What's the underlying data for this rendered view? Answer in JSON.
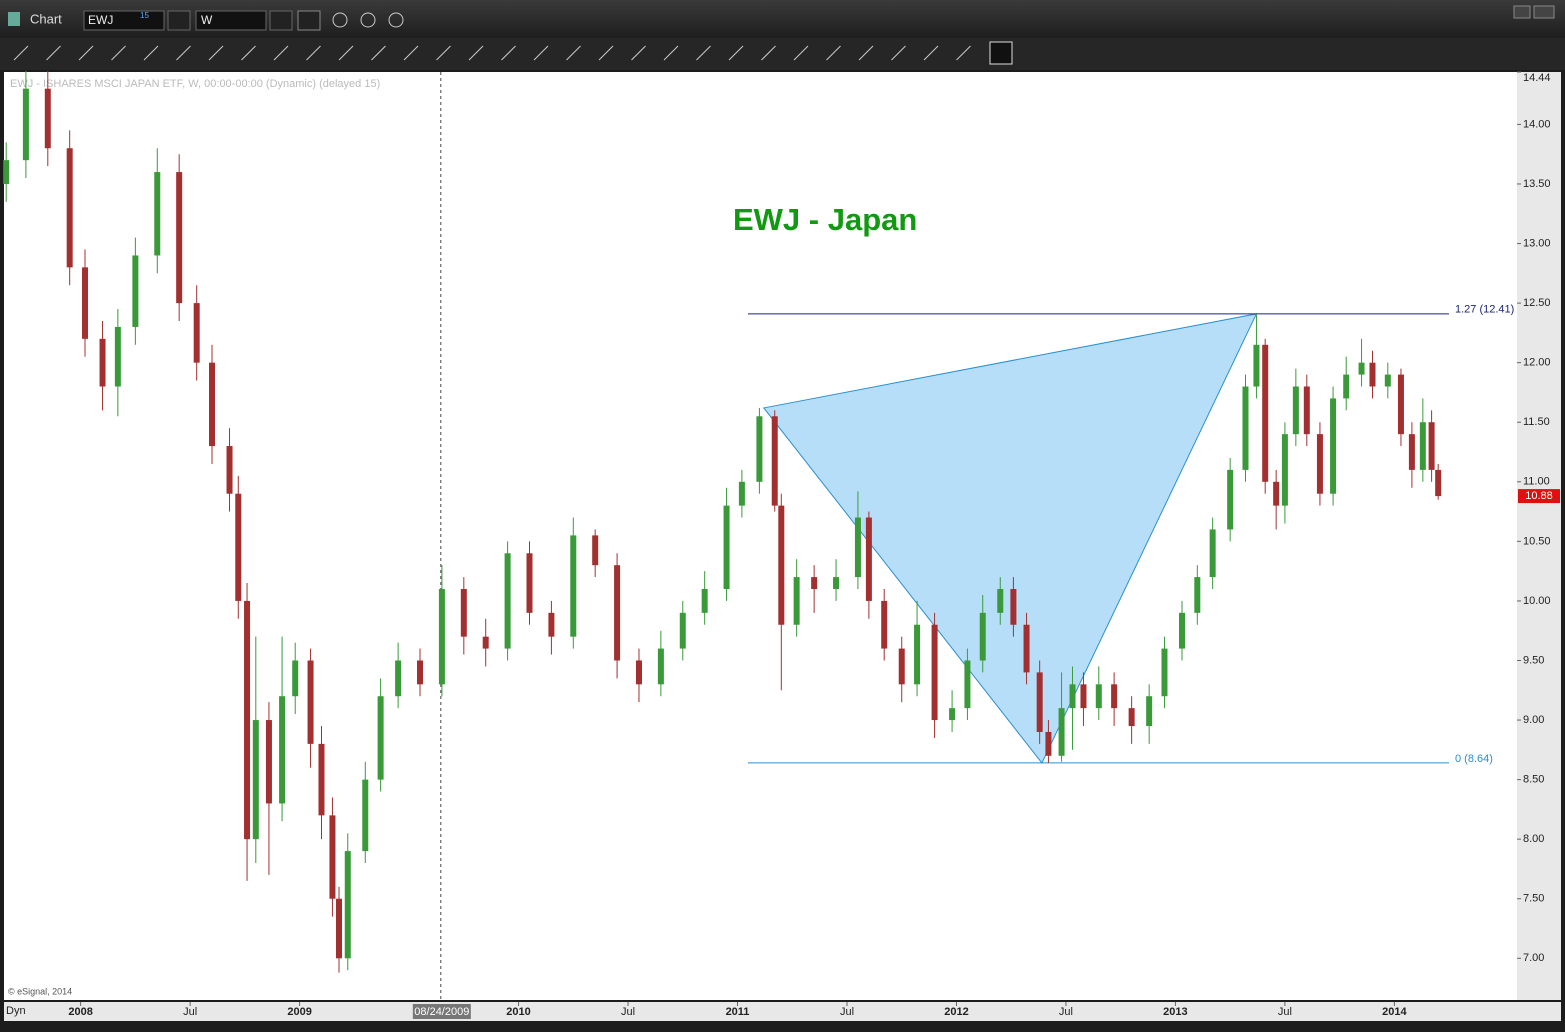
{
  "ui": {
    "window_title": "Chart",
    "symbol": "EWJ",
    "symbol_badge": "15",
    "interval": "W",
    "bottom_left": "Dyn",
    "copyright": "© eSignal, 2014",
    "watermark": "EWJ - ISHARES MSCI JAPAN ETF, W, 00:00-00:00 (Dynamic) (delayed 15)"
  },
  "chart_data": {
    "type": "candlestick",
    "title": "EWJ - Japan",
    "title_color": "#119911",
    "up_color": "#3a9a3a",
    "down_color": "#a33030",
    "xlim": [
      2007.65,
      2014.56
    ],
    "ylim": [
      6.65,
      14.44
    ],
    "xticks": [
      2008,
      {
        "value": 2008.5,
        "label": "Jul"
      },
      2009,
      2010,
      {
        "value": 2010.5,
        "label": "Jul"
      },
      2011,
      {
        "value": 2011.5,
        "label": "Jul"
      },
      2012,
      {
        "value": 2012.5,
        "label": "Jul"
      },
      2013,
      {
        "value": 2013.5,
        "label": "Jul"
      },
      2014
    ],
    "cursor": {
      "value": 2009.645,
      "label": "08/24/2009"
    },
    "yticks": [
      {
        "value": 7,
        "label": "7.00"
      },
      {
        "value": 7.5,
        "label": "7.50"
      },
      {
        "value": 8,
        "label": "8.00"
      },
      {
        "value": 8.5,
        "label": "8.50"
      },
      {
        "value": 9,
        "label": "9.00"
      },
      {
        "value": 9.5,
        "label": "9.50"
      },
      {
        "value": 10,
        "label": "10.00"
      },
      {
        "value": 10.5,
        "label": "10.50"
      },
      {
        "value": 11,
        "label": "11.00"
      },
      {
        "value": 11.5,
        "label": "11.50"
      },
      {
        "value": 12,
        "label": "12.00"
      },
      {
        "value": 12.5,
        "label": "12.50"
      },
      {
        "value": 13,
        "label": "13.00"
      },
      {
        "value": 13.5,
        "label": "13.50"
      },
      {
        "value": 14,
        "label": "14.00"
      },
      14.44
    ],
    "last_price": 10.88,
    "x": [
      2007.66,
      2007.75,
      2007.85,
      2007.95,
      2008.02,
      2008.1,
      2008.17,
      2008.25,
      2008.35,
      2008.45,
      2008.53,
      2008.6,
      2008.68,
      2008.72,
      2008.76,
      2008.8,
      2008.86,
      2008.92,
      2008.98,
      2009.05,
      2009.1,
      2009.15,
      2009.18,
      2009.22,
      2009.3,
      2009.37,
      2009.45,
      2009.55,
      2009.65,
      2009.75,
      2009.85,
      2009.95,
      2010.05,
      2010.15,
      2010.25,
      2010.35,
      2010.45,
      2010.55,
      2010.65,
      2010.75,
      2010.85,
      2010.95,
      2011.02,
      2011.1,
      2011.17,
      2011.2,
      2011.27,
      2011.35,
      2011.45,
      2011.55,
      2011.6,
      2011.67,
      2011.75,
      2011.82,
      2011.9,
      2011.98,
      2012.05,
      2012.12,
      2012.2,
      2012.26,
      2012.32,
      2012.38,
      2012.42,
      2012.48,
      2012.53,
      2012.58,
      2012.65,
      2012.72,
      2012.8,
      2012.88,
      2012.95,
      2013.03,
      2013.1,
      2013.17,
      2013.25,
      2013.32,
      2013.37,
      2013.41,
      2013.46,
      2013.5,
      2013.55,
      2013.6,
      2013.66,
      2013.72,
      2013.78,
      2013.85,
      2013.9,
      2013.97,
      2014.03,
      2014.08,
      2014.13,
      2014.17,
      2014.2
    ],
    "open": [
      13.5,
      13.7,
      14.3,
      13.8,
      12.8,
      12.2,
      11.8,
      12.3,
      12.9,
      13.6,
      12.5,
      12.0,
      11.3,
      10.9,
      10.0,
      8.0,
      9.0,
      8.3,
      9.2,
      9.5,
      8.8,
      8.2,
      7.5,
      7.0,
      7.9,
      8.5,
      9.2,
      9.5,
      9.3,
      10.1,
      9.7,
      9.6,
      10.4,
      9.9,
      9.7,
      10.55,
      10.3,
      9.5,
      9.3,
      9.6,
      9.9,
      10.1,
      10.8,
      11.0,
      11.55,
      10.8,
      9.8,
      10.2,
      10.1,
      10.2,
      10.7,
      10.0,
      9.6,
      9.3,
      9.8,
      9.0,
      9.1,
      9.5,
      9.9,
      10.1,
      9.8,
      9.4,
      8.9,
      8.7,
      9.1,
      9.3,
      9.1,
      9.3,
      9.1,
      8.95,
      9.2,
      9.6,
      9.9,
      10.2,
      10.6,
      11.1,
      11.8,
      12.15,
      11.0,
      10.8,
      11.4,
      11.8,
      11.4,
      10.9,
      11.7,
      11.9,
      12.0,
      11.8,
      11.9,
      11.4,
      11.1,
      11.5,
      11.1
    ],
    "high": [
      13.85,
      14.45,
      14.45,
      13.95,
      12.95,
      12.35,
      12.45,
      13.05,
      13.8,
      13.75,
      12.65,
      12.15,
      11.45,
      11.05,
      10.15,
      9.7,
      9.15,
      9.7,
      9.65,
      9.6,
      8.95,
      8.35,
      7.6,
      8.05,
      8.65,
      9.35,
      9.65,
      9.6,
      10.3,
      10.2,
      9.85,
      10.5,
      10.5,
      10.0,
      10.7,
      10.6,
      10.4,
      9.6,
      9.75,
      10.0,
      10.25,
      10.95,
      11.1,
      11.62,
      11.6,
      10.9,
      10.35,
      10.3,
      10.35,
      10.92,
      10.75,
      10.1,
      9.7,
      10.0,
      9.9,
      9.25,
      9.6,
      10.05,
      10.2,
      10.2,
      9.9,
      9.5,
      9.0,
      9.4,
      9.45,
      9.4,
      9.45,
      9.4,
      9.2,
      9.3,
      9.7,
      10.0,
      10.3,
      10.7,
      11.2,
      11.9,
      12.41,
      12.2,
      11.1,
      11.5,
      11.95,
      11.9,
      11.5,
      11.8,
      12.05,
      12.2,
      12.1,
      12.0,
      11.95,
      11.5,
      11.7,
      11.6,
      11.15
    ],
    "low": [
      13.35,
      13.55,
      13.65,
      12.65,
      12.05,
      11.6,
      11.55,
      12.15,
      12.75,
      12.35,
      11.85,
      11.15,
      10.75,
      9.85,
      7.65,
      7.8,
      7.7,
      8.15,
      9.05,
      8.6,
      8.0,
      7.35,
      6.88,
      6.9,
      7.8,
      8.4,
      9.1,
      9.2,
      9.2,
      9.55,
      9.45,
      9.5,
      9.8,
      9.55,
      9.6,
      10.2,
      9.35,
      9.15,
      9.2,
      9.5,
      9.8,
      10.0,
      10.7,
      10.9,
      10.75,
      9.25,
      9.7,
      9.9,
      10.0,
      10.1,
      9.85,
      9.5,
      9.15,
      9.2,
      8.85,
      8.9,
      9.0,
      9.4,
      9.8,
      9.7,
      9.3,
      8.8,
      8.64,
      8.65,
      8.75,
      8.95,
      9.0,
      8.95,
      8.8,
      8.8,
      9.1,
      9.5,
      9.8,
      10.1,
      10.5,
      11.0,
      11.7,
      10.9,
      10.6,
      10.65,
      11.3,
      11.3,
      10.8,
      10.8,
      11.6,
      11.8,
      11.7,
      11.7,
      11.3,
      10.95,
      11.0,
      11.0,
      10.85
    ],
    "close": [
      13.7,
      14.3,
      13.8,
      12.8,
      12.2,
      11.8,
      12.3,
      12.9,
      13.6,
      12.5,
      12.0,
      11.3,
      10.9,
      10.0,
      8.0,
      9.0,
      8.3,
      9.2,
      9.5,
      8.8,
      8.2,
      7.5,
      7.0,
      7.9,
      8.5,
      9.2,
      9.5,
      9.3,
      10.1,
      9.7,
      9.6,
      10.4,
      9.9,
      9.7,
      10.55,
      10.3,
      9.5,
      9.3,
      9.6,
      9.9,
      10.1,
      10.8,
      11.0,
      11.55,
      10.8,
      9.8,
      10.2,
      10.1,
      10.2,
      10.7,
      10.0,
      9.6,
      9.3,
      9.8,
      9.0,
      9.1,
      9.5,
      9.9,
      10.1,
      9.8,
      9.4,
      8.9,
      8.7,
      9.1,
      9.3,
      9.1,
      9.3,
      9.1,
      8.95,
      9.2,
      9.6,
      9.9,
      10.2,
      10.6,
      11.1,
      11.8,
      12.15,
      11.0,
      10.8,
      11.4,
      11.8,
      11.4,
      10.9,
      11.7,
      11.9,
      12.0,
      11.8,
      11.9,
      11.4,
      11.1,
      11.5,
      11.1,
      10.88
    ],
    "pattern": {
      "color": "#a9d8f7",
      "x": [
        2011.12,
        2013.37,
        2012.39
      ],
      "y": [
        11.62,
        12.41,
        8.64
      ]
    },
    "levels": [
      {
        "label": "1.27 (12.41)",
        "value": 12.41,
        "color": "#1a237e"
      },
      {
        "label": "0 (8.64)",
        "value": 8.64,
        "color": "#2a8fd0"
      }
    ]
  }
}
